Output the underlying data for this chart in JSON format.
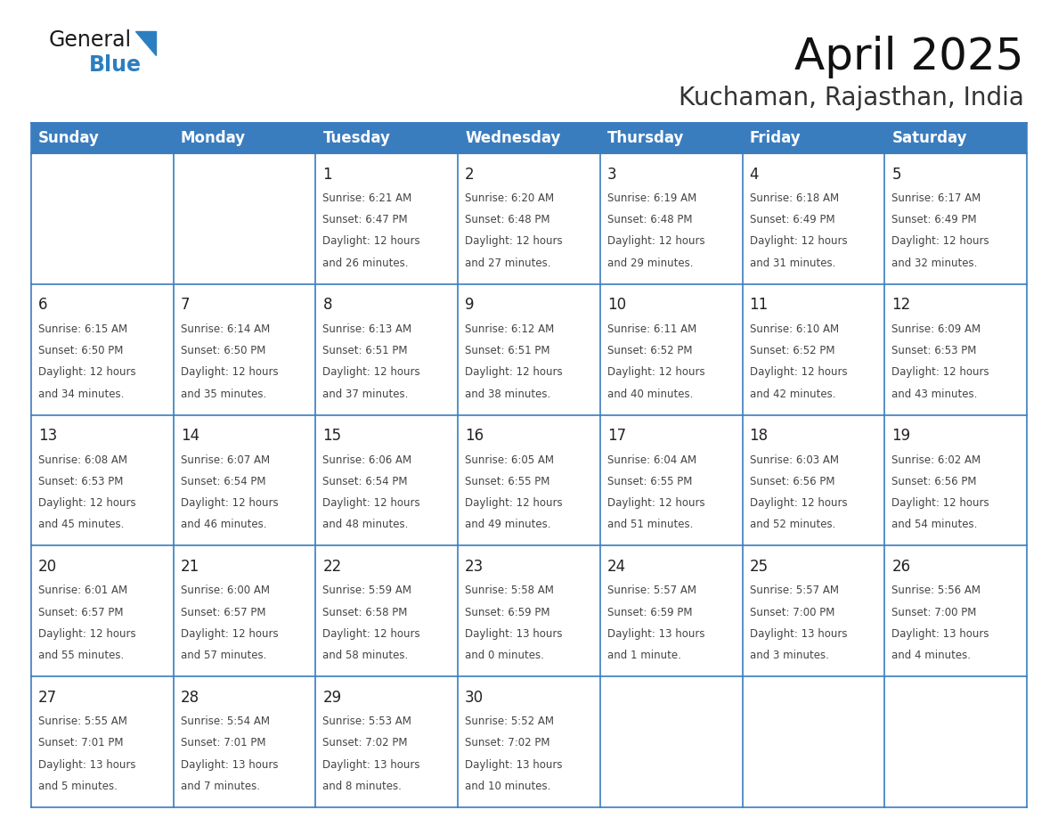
{
  "title": "April 2025",
  "subtitle": "Kuchaman, Rajasthan, India",
  "days_of_week": [
    "Sunday",
    "Monday",
    "Tuesday",
    "Wednesday",
    "Thursday",
    "Friday",
    "Saturday"
  ],
  "header_bg": "#3a7dbf",
  "header_text": "#ffffff",
  "cell_bg": "#ffffff",
  "border_color": "#3a7dbf",
  "text_color": "#444444",
  "day_number_color": "#222222",
  "calendar_data": [
    [
      {
        "day": null,
        "info": ""
      },
      {
        "day": null,
        "info": ""
      },
      {
        "day": 1,
        "info": "Sunrise: 6:21 AM\nSunset: 6:47 PM\nDaylight: 12 hours\nand 26 minutes."
      },
      {
        "day": 2,
        "info": "Sunrise: 6:20 AM\nSunset: 6:48 PM\nDaylight: 12 hours\nand 27 minutes."
      },
      {
        "day": 3,
        "info": "Sunrise: 6:19 AM\nSunset: 6:48 PM\nDaylight: 12 hours\nand 29 minutes."
      },
      {
        "day": 4,
        "info": "Sunrise: 6:18 AM\nSunset: 6:49 PM\nDaylight: 12 hours\nand 31 minutes."
      },
      {
        "day": 5,
        "info": "Sunrise: 6:17 AM\nSunset: 6:49 PM\nDaylight: 12 hours\nand 32 minutes."
      }
    ],
    [
      {
        "day": 6,
        "info": "Sunrise: 6:15 AM\nSunset: 6:50 PM\nDaylight: 12 hours\nand 34 minutes."
      },
      {
        "day": 7,
        "info": "Sunrise: 6:14 AM\nSunset: 6:50 PM\nDaylight: 12 hours\nand 35 minutes."
      },
      {
        "day": 8,
        "info": "Sunrise: 6:13 AM\nSunset: 6:51 PM\nDaylight: 12 hours\nand 37 minutes."
      },
      {
        "day": 9,
        "info": "Sunrise: 6:12 AM\nSunset: 6:51 PM\nDaylight: 12 hours\nand 38 minutes."
      },
      {
        "day": 10,
        "info": "Sunrise: 6:11 AM\nSunset: 6:52 PM\nDaylight: 12 hours\nand 40 minutes."
      },
      {
        "day": 11,
        "info": "Sunrise: 6:10 AM\nSunset: 6:52 PM\nDaylight: 12 hours\nand 42 minutes."
      },
      {
        "day": 12,
        "info": "Sunrise: 6:09 AM\nSunset: 6:53 PM\nDaylight: 12 hours\nand 43 minutes."
      }
    ],
    [
      {
        "day": 13,
        "info": "Sunrise: 6:08 AM\nSunset: 6:53 PM\nDaylight: 12 hours\nand 45 minutes."
      },
      {
        "day": 14,
        "info": "Sunrise: 6:07 AM\nSunset: 6:54 PM\nDaylight: 12 hours\nand 46 minutes."
      },
      {
        "day": 15,
        "info": "Sunrise: 6:06 AM\nSunset: 6:54 PM\nDaylight: 12 hours\nand 48 minutes."
      },
      {
        "day": 16,
        "info": "Sunrise: 6:05 AM\nSunset: 6:55 PM\nDaylight: 12 hours\nand 49 minutes."
      },
      {
        "day": 17,
        "info": "Sunrise: 6:04 AM\nSunset: 6:55 PM\nDaylight: 12 hours\nand 51 minutes."
      },
      {
        "day": 18,
        "info": "Sunrise: 6:03 AM\nSunset: 6:56 PM\nDaylight: 12 hours\nand 52 minutes."
      },
      {
        "day": 19,
        "info": "Sunrise: 6:02 AM\nSunset: 6:56 PM\nDaylight: 12 hours\nand 54 minutes."
      }
    ],
    [
      {
        "day": 20,
        "info": "Sunrise: 6:01 AM\nSunset: 6:57 PM\nDaylight: 12 hours\nand 55 minutes."
      },
      {
        "day": 21,
        "info": "Sunrise: 6:00 AM\nSunset: 6:57 PM\nDaylight: 12 hours\nand 57 minutes."
      },
      {
        "day": 22,
        "info": "Sunrise: 5:59 AM\nSunset: 6:58 PM\nDaylight: 12 hours\nand 58 minutes."
      },
      {
        "day": 23,
        "info": "Sunrise: 5:58 AM\nSunset: 6:59 PM\nDaylight: 13 hours\nand 0 minutes."
      },
      {
        "day": 24,
        "info": "Sunrise: 5:57 AM\nSunset: 6:59 PM\nDaylight: 13 hours\nand 1 minute."
      },
      {
        "day": 25,
        "info": "Sunrise: 5:57 AM\nSunset: 7:00 PM\nDaylight: 13 hours\nand 3 minutes."
      },
      {
        "day": 26,
        "info": "Sunrise: 5:56 AM\nSunset: 7:00 PM\nDaylight: 13 hours\nand 4 minutes."
      }
    ],
    [
      {
        "day": 27,
        "info": "Sunrise: 5:55 AM\nSunset: 7:01 PM\nDaylight: 13 hours\nand 5 minutes."
      },
      {
        "day": 28,
        "info": "Sunrise: 5:54 AM\nSunset: 7:01 PM\nDaylight: 13 hours\nand 7 minutes."
      },
      {
        "day": 29,
        "info": "Sunrise: 5:53 AM\nSunset: 7:02 PM\nDaylight: 13 hours\nand 8 minutes."
      },
      {
        "day": 30,
        "info": "Sunrise: 5:52 AM\nSunset: 7:02 PM\nDaylight: 13 hours\nand 10 minutes."
      },
      {
        "day": null,
        "info": ""
      },
      {
        "day": null,
        "info": ""
      },
      {
        "day": null,
        "info": ""
      }
    ]
  ],
  "logo_text_general": "General",
  "logo_text_blue": "Blue",
  "logo_color_general": "#1a1a1a",
  "logo_color_blue": "#2b7fc1",
  "logo_triangle_color": "#2b7fc1",
  "title_fontsize": 36,
  "subtitle_fontsize": 20,
  "header_fontsize": 12,
  "day_num_fontsize": 12,
  "info_fontsize": 8.5
}
